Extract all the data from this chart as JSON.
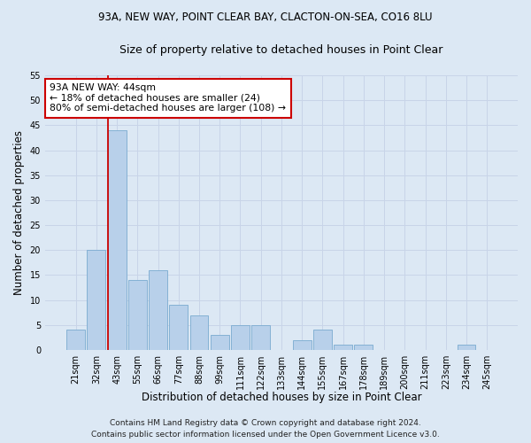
{
  "title1": "93A, NEW WAY, POINT CLEAR BAY, CLACTON-ON-SEA, CO16 8LU",
  "title2": "Size of property relative to detached houses in Point Clear",
  "xlabel": "Distribution of detached houses by size in Point Clear",
  "ylabel": "Number of detached properties",
  "categories": [
    "21sqm",
    "32sqm",
    "43sqm",
    "55sqm",
    "66sqm",
    "77sqm",
    "88sqm",
    "99sqm",
    "111sqm",
    "122sqm",
    "133sqm",
    "144sqm",
    "155sqm",
    "167sqm",
    "178sqm",
    "189sqm",
    "200sqm",
    "211sqm",
    "223sqm",
    "234sqm",
    "245sqm"
  ],
  "values": [
    4,
    20,
    44,
    14,
    16,
    9,
    7,
    3,
    5,
    5,
    0,
    2,
    4,
    1,
    1,
    0,
    0,
    0,
    0,
    1,
    0
  ],
  "bar_color": "#b8d0ea",
  "bar_edge_color": "#7aaad0",
  "vline_index": 2,
  "vline_color": "#cc0000",
  "annotation_line1": "93A NEW WAY: 44sqm",
  "annotation_line2": "← 18% of detached houses are smaller (24)",
  "annotation_line3": "80% of semi-detached houses are larger (108) →",
  "annotation_box_color": "#ffffff",
  "annotation_box_edge": "#cc0000",
  "grid_color": "#c8d4e8",
  "background_color": "#dce8f4",
  "ylim": [
    0,
    55
  ],
  "yticks": [
    0,
    5,
    10,
    15,
    20,
    25,
    30,
    35,
    40,
    45,
    50,
    55
  ],
  "footer1": "Contains HM Land Registry data © Crown copyright and database right 2024.",
  "footer2": "Contains public sector information licensed under the Open Government Licence v3.0.",
  "title1_fontsize": 8.5,
  "title2_fontsize": 9,
  "tick_fontsize": 7,
  "ylabel_fontsize": 8.5,
  "xlabel_fontsize": 8.5,
  "annotation_fontsize": 7.8,
  "footer_fontsize": 6.5
}
